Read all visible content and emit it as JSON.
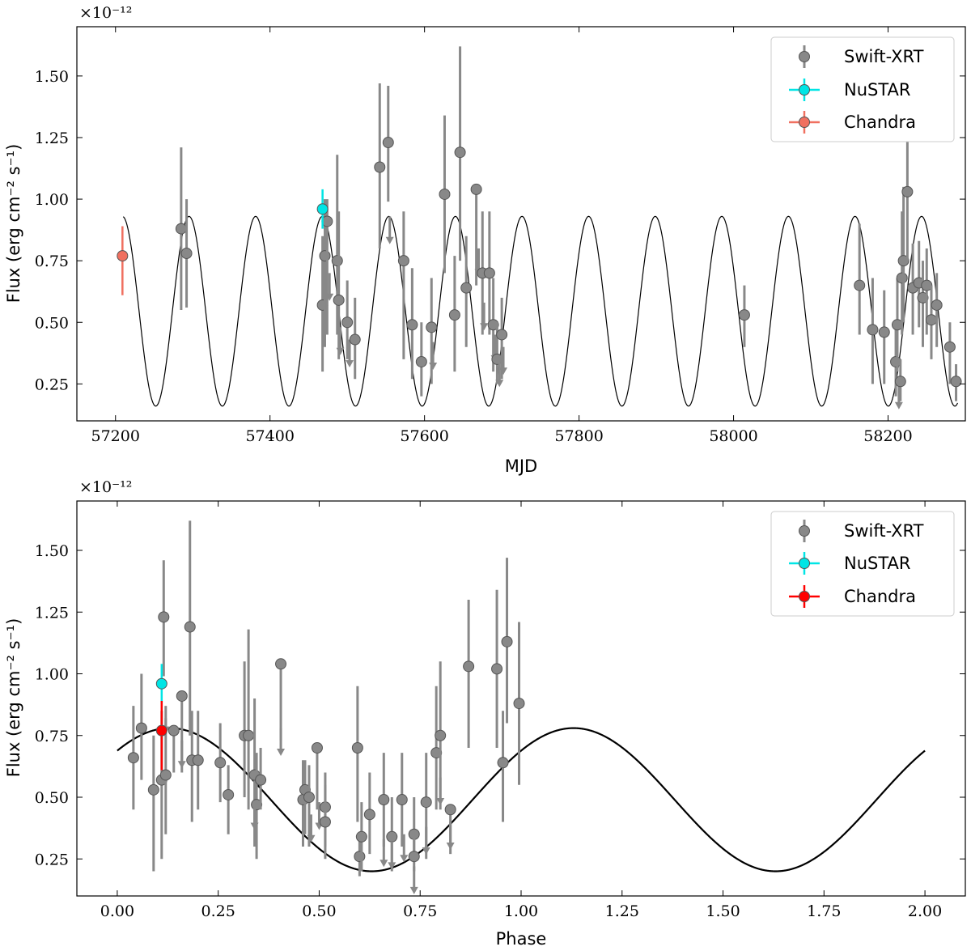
{
  "chart_data": [
    {
      "type": "scatter",
      "xlabel": "MJD",
      "ylabel": "Flux (erg cm⁻² s⁻¹)",
      "y_offset_label": "×10⁻¹²",
      "xlim": [
        57150,
        58300
      ],
      "ylim": [
        0.1,
        1.7
      ],
      "xticks": [
        57200,
        57400,
        57600,
        57800,
        58000,
        58200
      ],
      "yticks": [
        0.25,
        0.5,
        0.75,
        1.0,
        1.25,
        1.5
      ],
      "ytick_labels": [
        "0.25",
        "0.50",
        "0.75",
        "1.00",
        "1.25",
        "1.50"
      ],
      "xtick_labels": [
        "57200",
        "57400",
        "57600",
        "57800",
        "58000",
        "58200"
      ],
      "legend": {
        "position": "top-right",
        "entries": [
          "Swift-XRT",
          "NuSTAR",
          "Chandra"
        ]
      },
      "model": {
        "type": "sinusoid",
        "mean": 0.545,
        "amplitude": 0.385,
        "period_days": 86.2,
        "peak_mjd": 57640
      },
      "series": [
        {
          "name": "Swift-XRT",
          "color": "#888888",
          "points": [
            {
              "x": 57285,
              "y": 0.88,
              "lo": 0.55,
              "hi": 1.21
            },
            {
              "x": 57292,
              "y": 0.78,
              "lo": 0.56,
              "hi": 1.0
            },
            {
              "x": 57468,
              "y": 0.57,
              "lo": 0.3,
              "hi": 0.85
            },
            {
              "x": 57471,
              "y": 0.77,
              "lo": 0.4,
              "hi": 1.0
            },
            {
              "x": 57474,
              "y": 0.91,
              "lo": 0.45,
              "hi": 1.0
            },
            {
              "x": 57477,
              "y": 0.7,
              "ul": true
            },
            {
              "x": 57487,
              "y": 0.75,
              "lo": 0.45,
              "hi": 1.18
            },
            {
              "x": 57489,
              "y": 0.59,
              "lo": 0.35,
              "hi": 0.95
            },
            {
              "x": 57491,
              "y": 0.48,
              "ul": true
            },
            {
              "x": 57500,
              "y": 0.5,
              "lo": 0.35,
              "hi": 0.67
            },
            {
              "x": 57503,
              "y": 0.43,
              "ul": true
            },
            {
              "x": 57510,
              "y": 0.43,
              "lo": 0.27,
              "hi": 0.6
            },
            {
              "x": 57542,
              "y": 1.13,
              "lo": 0.8,
              "hi": 1.47
            },
            {
              "x": 57553,
              "y": 1.23,
              "lo": 0.99,
              "hi": 1.46
            },
            {
              "x": 57555,
              "y": 0.93,
              "ul": true
            },
            {
              "x": 57573,
              "y": 0.75,
              "lo": 0.35,
              "hi": 0.95
            },
            {
              "x": 57584,
              "y": 0.49,
              "lo": 0.27,
              "hi": 0.72
            },
            {
              "x": 57596,
              "y": 0.34,
              "lo": 0.2,
              "hi": 0.5
            },
            {
              "x": 57609,
              "y": 0.48,
              "lo": 0.25,
              "hi": 0.68
            },
            {
              "x": 57611,
              "y": 0.42,
              "ul": true
            },
            {
              "x": 57626,
              "y": 1.02,
              "lo": 0.7,
              "hi": 1.34
            },
            {
              "x": 57639,
              "y": 0.53,
              "lo": 0.3,
              "hi": 0.77
            },
            {
              "x": 57646,
              "y": 1.19,
              "lo": 0.75,
              "hi": 1.62
            },
            {
              "x": 57654,
              "y": 0.64,
              "lo": 0.4,
              "hi": 0.85
            },
            {
              "x": 57667,
              "y": 1.04,
              "lo": 0.65,
              "hi": 1.04
            },
            {
              "x": 57670,
              "y": 0.8,
              "ul": true
            },
            {
              "x": 57675,
              "y": 0.7,
              "lo": 0.45,
              "hi": 0.95
            },
            {
              "x": 57677,
              "y": 0.58,
              "ul": true
            },
            {
              "x": 57684,
              "y": 0.7,
              "lo": 0.45,
              "hi": 0.95
            },
            {
              "x": 57689,
              "y": 0.49,
              "lo": 0.3,
              "hi": 0.68
            },
            {
              "x": 57691,
              "y": 0.45,
              "ul": true
            },
            {
              "x": 57694,
              "y": 0.35,
              "lo": 0.25,
              "hi": 0.5
            },
            {
              "x": 57697,
              "y": 0.35,
              "ul": true
            },
            {
              "x": 57700,
              "y": 0.45,
              "lo": 0.27,
              "hi": 0.6
            },
            {
              "x": 57702,
              "y": 0.4,
              "ul": true
            },
            {
              "x": 58014,
              "y": 0.53,
              "lo": 0.4,
              "hi": 0.65
            },
            {
              "x": 58163,
              "y": 0.65,
              "lo": 0.45,
              "hi": 0.9
            },
            {
              "x": 58180,
              "y": 0.47,
              "lo": 0.25,
              "hi": 0.68
            },
            {
              "x": 58195,
              "y": 0.46,
              "lo": 0.25,
              "hi": 0.63
            },
            {
              "x": 58210,
              "y": 0.34,
              "lo": 0.2,
              "hi": 0.48
            },
            {
              "x": 58212,
              "y": 0.49,
              "lo": 0.3,
              "hi": 0.68
            },
            {
              "x": 58214,
              "y": 0.26,
              "ul": true
            },
            {
              "x": 58216,
              "y": 0.26,
              "lo": 0.18,
              "hi": 0.35
            },
            {
              "x": 58218,
              "y": 0.68,
              "lo": 0.45,
              "hi": 0.95
            },
            {
              "x": 58220,
              "y": 0.75,
              "lo": 0.5,
              "hi": 1.05
            },
            {
              "x": 58225,
              "y": 1.03,
              "lo": 0.75,
              "hi": 1.3
            },
            {
              "x": 58232,
              "y": 0.64,
              "lo": 0.45,
              "hi": 0.82
            },
            {
              "x": 58240,
              "y": 0.66,
              "lo": 0.48,
              "hi": 0.83
            },
            {
              "x": 58245,
              "y": 0.6,
              "lo": 0.4,
              "hi": 0.75
            },
            {
              "x": 58250,
              "y": 0.65,
              "lo": 0.45,
              "hi": 0.8
            },
            {
              "x": 58256,
              "y": 0.51,
              "lo": 0.35,
              "hi": 0.65
            },
            {
              "x": 58263,
              "y": 0.57,
              "lo": 0.4,
              "hi": 0.7
            },
            {
              "x": 58280,
              "y": 0.4,
              "lo": 0.25,
              "hi": 0.5
            },
            {
              "x": 58288,
              "y": 0.26,
              "lo": 0.18,
              "hi": 0.33
            }
          ]
        },
        {
          "name": "NuSTAR",
          "color": "#00e5e5",
          "points": [
            {
              "x": 57468,
              "y": 0.96,
              "lo": 0.88,
              "hi": 1.04,
              "xerr": 2
            }
          ]
        },
        {
          "name": "Chandra",
          "color": "#f07060",
          "points": [
            {
              "x": 57209,
              "y": 0.77,
              "lo": 0.61,
              "hi": 0.89,
              "xerr": 1
            }
          ]
        }
      ]
    },
    {
      "type": "scatter",
      "xlabel": "Phase",
      "ylabel": "Flux (erg cm⁻² s⁻¹)",
      "y_offset_label": "×10⁻¹²",
      "xlim": [
        -0.1,
        2.1
      ],
      "ylim": [
        0.1,
        1.7
      ],
      "xticks": [
        0.0,
        0.25,
        0.5,
        0.75,
        1.0,
        1.25,
        1.5,
        1.75,
        2.0
      ],
      "xtick_labels": [
        "0.00",
        "0.25",
        "0.50",
        "0.75",
        "1.00",
        "1.25",
        "1.50",
        "1.75",
        "2.00"
      ],
      "yticks": [
        0.25,
        0.5,
        0.75,
        1.0,
        1.25,
        1.5
      ],
      "ytick_labels": [
        "0.25",
        "0.50",
        "0.75",
        "1.00",
        "1.25",
        "1.50"
      ],
      "legend": {
        "position": "top-right",
        "entries": [
          "Swift-XRT",
          "NuSTAR",
          "Chandra"
        ]
      },
      "model": {
        "type": "sinusoid",
        "mean": 0.49,
        "amplitude": 0.29,
        "period_phase": 1.0,
        "peak_phase": 0.13
      },
      "series": [
        {
          "name": "Swift-XRT",
          "color": "#888888",
          "points": [
            {
              "x": 0.04,
              "y": 0.66,
              "lo": 0.45,
              "hi": 0.87
            },
            {
              "x": 0.06,
              "y": 0.78,
              "lo": 0.57,
              "hi": 1.0
            },
            {
              "x": 0.09,
              "y": 0.53,
              "lo": 0.2,
              "hi": 0.75
            },
            {
              "x": 0.11,
              "y": 0.57,
              "lo": 0.25,
              "hi": 0.85
            },
            {
              "x": 0.115,
              "y": 1.23,
              "lo": 0.99,
              "hi": 1.46
            },
            {
              "x": 0.12,
              "y": 0.59,
              "lo": 0.35,
              "hi": 0.82
            },
            {
              "x": 0.12,
              "y": 0.87,
              "ul": true
            },
            {
              "x": 0.14,
              "y": 0.77,
              "lo": 0.6,
              "hi": 0.77
            },
            {
              "x": 0.16,
              "y": 0.91,
              "lo": 0.6,
              "hi": 0.91
            },
            {
              "x": 0.16,
              "y": 0.73,
              "ul": true
            },
            {
              "x": 0.18,
              "y": 1.19,
              "lo": 0.75,
              "hi": 1.62
            },
            {
              "x": 0.185,
              "y": 0.65,
              "lo": 0.4,
              "hi": 0.85
            },
            {
              "x": 0.2,
              "y": 0.65,
              "lo": 0.45,
              "hi": 0.85
            },
            {
              "x": 0.255,
              "y": 0.64,
              "lo": 0.48,
              "hi": 0.8
            },
            {
              "x": 0.275,
              "y": 0.51,
              "lo": 0.35,
              "hi": 0.63
            },
            {
              "x": 0.315,
              "y": 0.75,
              "lo": 0.5,
              "hi": 1.05
            },
            {
              "x": 0.325,
              "y": 0.75,
              "lo": 0.45,
              "hi": 1.18
            },
            {
              "x": 0.34,
              "y": 0.59,
              "lo": 0.3,
              "hi": 0.9
            },
            {
              "x": 0.345,
              "y": 0.47,
              "lo": 0.25,
              "hi": 0.68
            },
            {
              "x": 0.34,
              "y": 0.48,
              "ul": true
            },
            {
              "x": 0.355,
              "y": 0.57,
              "lo": 0.45,
              "hi": 0.7
            },
            {
              "x": 0.405,
              "y": 1.04,
              "lo": 0.73,
              "hi": 1.04
            },
            {
              "x": 0.405,
              "y": 0.78,
              "ul": true
            },
            {
              "x": 0.46,
              "y": 0.49,
              "lo": 0.3,
              "hi": 0.65
            },
            {
              "x": 0.465,
              "y": 0.53,
              "lo": 0.35,
              "hi": 0.65
            },
            {
              "x": 0.475,
              "y": 0.5,
              "lo": 0.3,
              "hi": 0.63
            },
            {
              "x": 0.48,
              "y": 0.43,
              "ul": true
            },
            {
              "x": 0.495,
              "y": 0.7,
              "lo": 0.45,
              "hi": 0.7
            },
            {
              "x": 0.5,
              "y": 0.48,
              "ul": true
            },
            {
              "x": 0.515,
              "y": 0.46,
              "lo": 0.3,
              "hi": 0.6
            },
            {
              "x": 0.515,
              "y": 0.4,
              "lo": 0.25,
              "hi": 0.55
            },
            {
              "x": 0.595,
              "y": 0.7,
              "lo": 0.4,
              "hi": 0.95
            },
            {
              "x": 0.6,
              "y": 0.26,
              "lo": 0.18,
              "hi": 0.34
            },
            {
              "x": 0.605,
              "y": 0.34,
              "lo": 0.2,
              "hi": 0.48
            },
            {
              "x": 0.625,
              "y": 0.43,
              "lo": 0.27,
              "hi": 0.6
            },
            {
              "x": 0.66,
              "y": 0.49,
              "lo": 0.3,
              "hi": 0.68
            },
            {
              "x": 0.66,
              "y": 0.33,
              "ul": true
            },
            {
              "x": 0.68,
              "y": 0.34,
              "lo": 0.2,
              "hi": 0.5
            },
            {
              "x": 0.68,
              "y": 0.32,
              "ul": true
            },
            {
              "x": 0.705,
              "y": 0.49,
              "lo": 0.3,
              "hi": 0.68
            },
            {
              "x": 0.71,
              "y": 0.35,
              "ul": true
            },
            {
              "x": 0.735,
              "y": 0.35,
              "lo": 0.25,
              "hi": 0.5
            },
            {
              "x": 0.735,
              "y": 0.26,
              "lo": 0.2,
              "hi": 0.35
            },
            {
              "x": 0.735,
              "y": 0.22,
              "ul": true
            },
            {
              "x": 0.765,
              "y": 0.48,
              "lo": 0.25,
              "hi": 0.68
            },
            {
              "x": 0.765,
              "y": 0.38,
              "ul": true
            },
            {
              "x": 0.79,
              "y": 0.68,
              "lo": 0.45,
              "hi": 0.95
            },
            {
              "x": 0.8,
              "y": 0.75,
              "lo": 0.45,
              "hi": 1.05
            },
            {
              "x": 0.8,
              "y": 0.58,
              "ul": true
            },
            {
              "x": 0.825,
              "y": 0.45,
              "lo": 0.27,
              "hi": 0.45
            },
            {
              "x": 0.825,
              "y": 0.4,
              "ul": true
            },
            {
              "x": 0.87,
              "y": 1.03,
              "lo": 0.7,
              "hi": 1.3
            },
            {
              "x": 0.94,
              "y": 1.02,
              "lo": 0.7,
              "hi": 1.34
            },
            {
              "x": 0.955,
              "y": 0.64,
              "lo": 0.4,
              "hi": 0.85
            },
            {
              "x": 0.965,
              "y": 1.13,
              "lo": 0.8,
              "hi": 1.47
            },
            {
              "x": 0.995,
              "y": 0.88,
              "lo": 0.55,
              "hi": 1.21
            }
          ]
        },
        {
          "name": "NuSTAR",
          "color": "#00e5e5",
          "points": [
            {
              "x": 0.11,
              "y": 0.96,
              "lo": 0.88,
              "hi": 1.04,
              "xerr": 0.005
            }
          ]
        },
        {
          "name": "Chandra",
          "color": "#ff0000",
          "points": [
            {
              "x": 0.11,
              "y": 0.77,
              "lo": 0.61,
              "hi": 0.89,
              "xerr": 0.005
            }
          ]
        }
      ]
    }
  ]
}
